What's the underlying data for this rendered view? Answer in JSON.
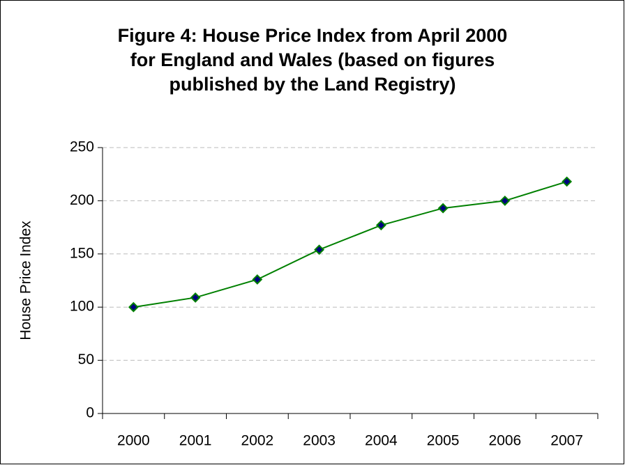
{
  "chart_data": {
    "type": "line",
    "title": "Figure 4: House Price Index from April 2000 for England and Wales (based on figures published by the Land Registry)",
    "y_label": "House Price Index",
    "categories": [
      "2000",
      "2001",
      "2002",
      "2003",
      "2004",
      "2005",
      "2006",
      "2007"
    ],
    "series": [
      {
        "name": "House Price Index",
        "color": "#008000",
        "marker_color": "#000080",
        "values": [
          100,
          109,
          126,
          154,
          177,
          193,
          200,
          218
        ]
      }
    ],
    "ylim": [
      0,
      250
    ],
    "yticks": [
      0,
      50,
      100,
      150,
      200,
      250
    ],
    "grid": true,
    "legend": false
  }
}
